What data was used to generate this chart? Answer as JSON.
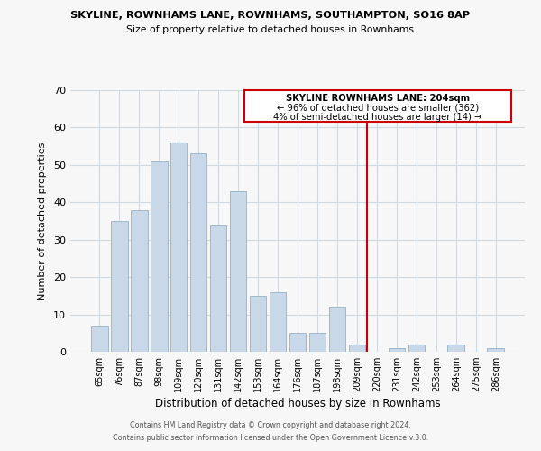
{
  "title": "SKYLINE, ROWNHAMS LANE, ROWNHAMS, SOUTHAMPTON, SO16 8AP",
  "subtitle": "Size of property relative to detached houses in Rownhams",
  "xlabel": "Distribution of detached houses by size in Rownhams",
  "ylabel": "Number of detached properties",
  "bar_labels": [
    "65sqm",
    "76sqm",
    "87sqm",
    "98sqm",
    "109sqm",
    "120sqm",
    "131sqm",
    "142sqm",
    "153sqm",
    "164sqm",
    "176sqm",
    "187sqm",
    "198sqm",
    "209sqm",
    "220sqm",
    "231sqm",
    "242sqm",
    "253sqm",
    "264sqm",
    "275sqm",
    "286sqm"
  ],
  "bar_values": [
    7,
    35,
    38,
    51,
    56,
    53,
    34,
    43,
    15,
    16,
    5,
    5,
    12,
    2,
    0,
    1,
    2,
    0,
    2,
    0,
    1
  ],
  "bar_color": "#c8d8e8",
  "bar_edge_color": "#a0b8cc",
  "ylim": [
    0,
    70
  ],
  "yticks": [
    0,
    10,
    20,
    30,
    40,
    50,
    60,
    70
  ],
  "vline_x": 13.5,
  "vline_color": "#cc0000",
  "annotation_title": "SKYLINE ROWNHAMS LANE: 204sqm",
  "annotation_line1": "← 96% of detached houses are smaller (362)",
  "annotation_line2": "4% of semi-detached houses are larger (14) →",
  "footer1": "Contains HM Land Registry data © Crown copyright and database right 2024.",
  "footer2": "Contains public sector information licensed under the Open Government Licence v.3.0.",
  "background_color": "#f7f7f7"
}
